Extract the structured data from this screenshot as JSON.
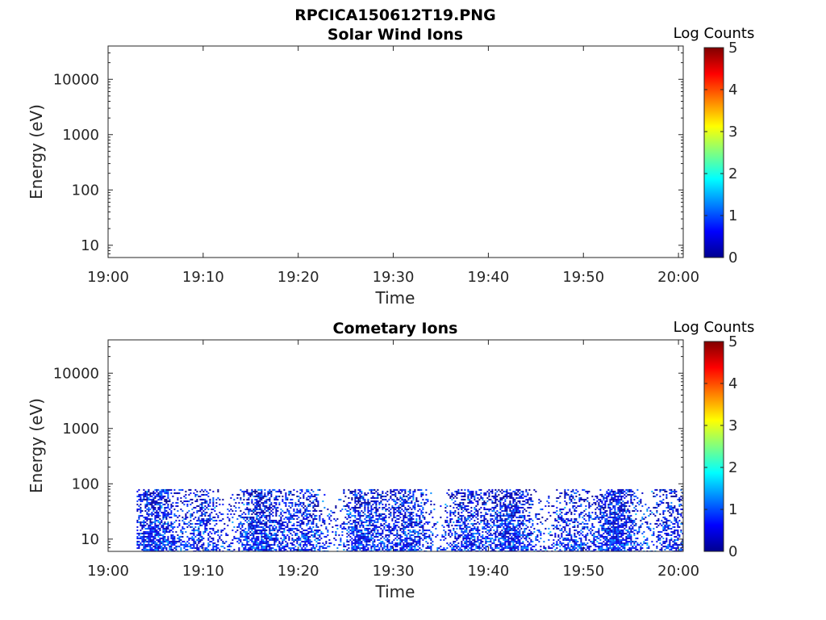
{
  "figure_title": "RPCICA150612T19.PNG",
  "chart_data": [
    {
      "type": "heatmap",
      "title": "Solar Wind Ions",
      "xlabel": "Time",
      "ylabel": "Energy (eV)",
      "x_ticks": [
        "19:00",
        "19:10",
        "19:20",
        "19:30",
        "19:40",
        "19:50",
        "20:00"
      ],
      "x_range_minutes": [
        0,
        60.5
      ],
      "y_scale": "log",
      "y_ticks": [
        10,
        100,
        1000,
        10000
      ],
      "y_tick_labels": [
        "10",
        "100",
        "1000",
        "10000"
      ],
      "y_range": [
        6,
        40000
      ],
      "colorbar": {
        "label": "Log Counts",
        "range": [
          0,
          5
        ],
        "ticks": [
          "0",
          "1",
          "2",
          "3",
          "4",
          "5"
        ],
        "colormap": "jet"
      },
      "data": "empty"
    },
    {
      "type": "heatmap",
      "title": "Cometary Ions",
      "xlabel": "Time",
      "ylabel": "Energy (eV)",
      "x_ticks": [
        "19:00",
        "19:10",
        "19:20",
        "19:30",
        "19:40",
        "19:50",
        "20:00"
      ],
      "x_range_minutes": [
        0,
        60.5
      ],
      "y_scale": "log",
      "y_ticks": [
        10,
        100,
        1000,
        10000
      ],
      "y_tick_labels": [
        "10",
        "100",
        "1000",
        "10000"
      ],
      "y_range": [
        6,
        40000
      ],
      "colorbar": {
        "label": "Log Counts",
        "range": [
          0,
          5
        ],
        "ticks": [
          "0",
          "1",
          "2",
          "3",
          "4",
          "5"
        ],
        "colormap": "jet"
      },
      "data_extent": {
        "time_start": "19:03",
        "time_end": "20:00",
        "energy_min_eV": 6,
        "energy_max_eV": 80
      },
      "typical_log_counts": [
        0,
        1.2
      ],
      "peak_log_counts": 1.6
    }
  ]
}
